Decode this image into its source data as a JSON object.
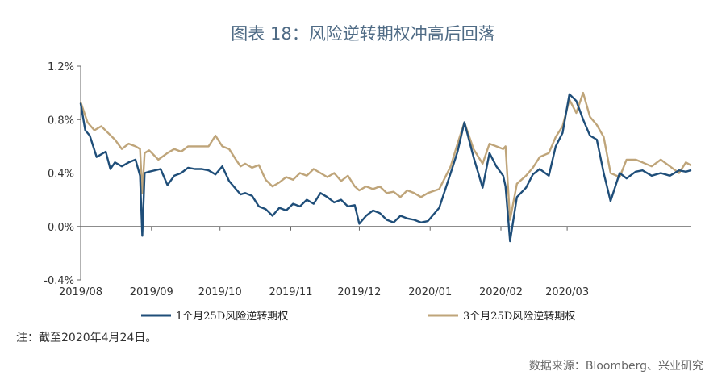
{
  "title": "图表 18：风险逆转期权冲高后回落",
  "note": "注：截至2020年4月24日。",
  "source": "数据来源：Bloomberg、兴业研究",
  "colors": {
    "series1": "#1f4e79",
    "series2": "#bfa57a",
    "axis": "#666666"
  },
  "chart_data": {
    "type": "line",
    "title": "图表 18：风险逆转期权冲高后回落",
    "xlabel": "",
    "ylabel": "",
    "ylim": [
      -0.4,
      1.2
    ],
    "yticks": [
      -0.4,
      0.0,
      0.4,
      0.8,
      1.2
    ],
    "ytick_labels": [
      "-0.4%",
      "0.0%",
      "0.4%",
      "0.8%",
      "1.2%"
    ],
    "xlim": [
      "2019-08-01",
      "2020-04-24"
    ],
    "xticks": [
      "2019-08-01",
      "2019-09-01",
      "2019-10-01",
      "2019-11-01",
      "2019-12-01",
      "2020-01-01",
      "2020-02-01",
      "2020-03-01"
    ],
    "xtick_labels": [
      "2019/08",
      "2019/09",
      "2019/10",
      "2019/11",
      "2019/12",
      "2020/01",
      "2020/02",
      "2020/03"
    ],
    "grid": false,
    "legend_position": "bottom",
    "series": [
      {
        "name": "1个月25D风险逆转期权",
        "x": [
          "2019-08-01",
          "2019-08-03",
          "2019-08-05",
          "2019-08-08",
          "2019-08-12",
          "2019-08-14",
          "2019-08-16",
          "2019-08-19",
          "2019-08-22",
          "2019-08-25",
          "2019-08-27",
          "2019-08-28",
          "2019-08-29",
          "2019-08-31",
          "2019-09-05",
          "2019-09-08",
          "2019-09-11",
          "2019-09-14",
          "2019-09-17",
          "2019-09-20",
          "2019-09-23",
          "2019-09-26",
          "2019-09-29",
          "2019-10-02",
          "2019-10-05",
          "2019-10-08",
          "2019-10-10",
          "2019-10-12",
          "2019-10-15",
          "2019-10-18",
          "2019-10-21",
          "2019-10-24",
          "2019-10-27",
          "2019-10-30",
          "2019-11-02",
          "2019-11-05",
          "2019-11-08",
          "2019-11-11",
          "2019-11-14",
          "2019-11-17",
          "2019-11-20",
          "2019-11-23",
          "2019-11-26",
          "2019-11-29",
          "2019-12-01",
          "2019-12-04",
          "2019-12-07",
          "2019-12-10",
          "2019-12-13",
          "2019-12-16",
          "2019-12-19",
          "2019-12-22",
          "2019-12-25",
          "2019-12-28",
          "2019-12-31",
          "2020-01-05",
          "2020-01-10",
          "2020-01-13",
          "2020-01-16",
          "2020-01-20",
          "2020-01-24",
          "2020-01-27",
          "2020-01-30",
          "2020-02-02",
          "2020-02-03",
          "2020-02-05",
          "2020-02-08",
          "2020-02-12",
          "2020-02-15",
          "2020-02-18",
          "2020-02-22",
          "2020-02-25",
          "2020-02-28",
          "2020-03-02",
          "2020-03-05",
          "2020-03-08",
          "2020-03-11",
          "2020-03-14",
          "2020-03-17",
          "2020-03-20",
          "2020-03-24",
          "2020-03-27",
          "2020-03-31",
          "2020-04-03",
          "2020-04-07",
          "2020-04-11",
          "2020-04-15",
          "2020-04-19",
          "2020-04-22",
          "2020-04-24"
        ],
        "values": [
          0.92,
          0.72,
          0.68,
          0.52,
          0.56,
          0.43,
          0.48,
          0.45,
          0.48,
          0.5,
          0.38,
          -0.07,
          0.4,
          0.41,
          0.43,
          0.31,
          0.38,
          0.4,
          0.44,
          0.43,
          0.43,
          0.42,
          0.39,
          0.45,
          0.34,
          0.28,
          0.24,
          0.25,
          0.23,
          0.15,
          0.13,
          0.08,
          0.14,
          0.12,
          0.17,
          0.15,
          0.2,
          0.17,
          0.25,
          0.22,
          0.18,
          0.2,
          0.15,
          0.16,
          0.02,
          0.08,
          0.12,
          0.1,
          0.05,
          0.03,
          0.08,
          0.06,
          0.05,
          0.03,
          0.04,
          0.14,
          0.4,
          0.56,
          0.78,
          0.52,
          0.29,
          0.55,
          0.45,
          0.38,
          0.3,
          -0.11,
          0.22,
          0.29,
          0.39,
          0.43,
          0.38,
          0.6,
          0.7,
          0.99,
          0.94,
          0.8,
          0.68,
          0.65,
          0.4,
          0.19,
          0.4,
          0.36,
          0.41,
          0.42,
          0.38,
          0.4,
          0.38,
          0.42,
          0.41,
          0.42
        ]
      },
      {
        "name": "3个月25D风险逆转期权",
        "x": [
          "2019-08-01",
          "2019-08-04",
          "2019-08-07",
          "2019-08-10",
          "2019-08-13",
          "2019-08-16",
          "2019-08-19",
          "2019-08-22",
          "2019-08-25",
          "2019-08-27",
          "2019-08-28",
          "2019-08-29",
          "2019-08-31",
          "2019-09-04",
          "2019-09-08",
          "2019-09-11",
          "2019-09-14",
          "2019-09-17",
          "2019-09-20",
          "2019-09-23",
          "2019-09-26",
          "2019-09-29",
          "2019-10-02",
          "2019-10-05",
          "2019-10-08",
          "2019-10-10",
          "2019-10-12",
          "2019-10-15",
          "2019-10-18",
          "2019-10-21",
          "2019-10-24",
          "2019-10-27",
          "2019-10-30",
          "2019-11-02",
          "2019-11-05",
          "2019-11-08",
          "2019-11-11",
          "2019-11-14",
          "2019-11-17",
          "2019-11-20",
          "2019-11-23",
          "2019-11-26",
          "2019-11-29",
          "2019-12-01",
          "2019-12-04",
          "2019-12-07",
          "2019-12-10",
          "2019-12-13",
          "2019-12-16",
          "2019-12-19",
          "2019-12-22",
          "2019-12-25",
          "2019-12-28",
          "2019-12-31",
          "2020-01-05",
          "2020-01-10",
          "2020-01-13",
          "2020-01-16",
          "2020-01-20",
          "2020-01-24",
          "2020-01-27",
          "2020-01-30",
          "2020-02-02",
          "2020-02-03",
          "2020-02-05",
          "2020-02-08",
          "2020-02-12",
          "2020-02-15",
          "2020-02-18",
          "2020-02-22",
          "2020-02-25",
          "2020-02-28",
          "2020-03-02",
          "2020-03-05",
          "2020-03-08",
          "2020-03-11",
          "2020-03-14",
          "2020-03-17",
          "2020-03-20",
          "2020-03-24",
          "2020-03-27",
          "2020-03-31",
          "2020-04-03",
          "2020-04-07",
          "2020-04-11",
          "2020-04-15",
          "2020-04-19",
          "2020-04-22",
          "2020-04-24"
        ],
        "values": [
          0.93,
          0.78,
          0.72,
          0.75,
          0.7,
          0.65,
          0.58,
          0.62,
          0.6,
          0.58,
          0.25,
          0.55,
          0.57,
          0.5,
          0.55,
          0.58,
          0.56,
          0.6,
          0.6,
          0.6,
          0.6,
          0.68,
          0.6,
          0.58,
          0.5,
          0.45,
          0.47,
          0.44,
          0.46,
          0.35,
          0.3,
          0.33,
          0.37,
          0.35,
          0.4,
          0.38,
          0.43,
          0.4,
          0.37,
          0.4,
          0.34,
          0.38,
          0.3,
          0.27,
          0.3,
          0.28,
          0.3,
          0.25,
          0.26,
          0.22,
          0.27,
          0.25,
          0.22,
          0.25,
          0.28,
          0.45,
          0.62,
          0.78,
          0.58,
          0.47,
          0.62,
          0.6,
          0.58,
          0.6,
          0.05,
          0.32,
          0.38,
          0.44,
          0.52,
          0.55,
          0.67,
          0.75,
          0.95,
          0.85,
          1.0,
          0.82,
          0.76,
          0.67,
          0.4,
          0.37,
          0.5,
          0.5,
          0.48,
          0.45,
          0.5,
          0.45,
          0.4,
          0.48,
          0.46
        ]
      }
    ]
  }
}
